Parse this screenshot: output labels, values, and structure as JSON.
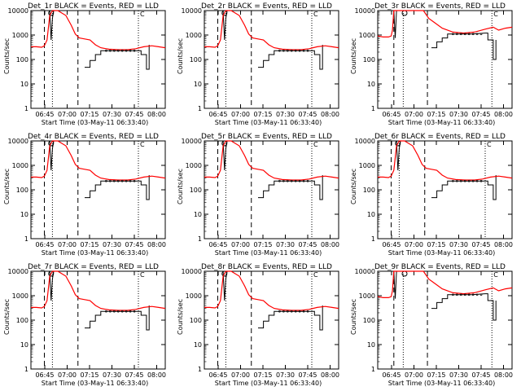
{
  "figure": {
    "layout": "3x3 grid of time-series panels",
    "colors": {
      "events": "#000000",
      "lld": "#ff0000",
      "background": "#ffffff",
      "axes": "#000000"
    }
  },
  "chart_data": [
    {
      "type": "line",
      "title": "Det_1r BLACK = Events, RED = LLD",
      "xlabel": "Start Time (03-May-11 06:33:40)",
      "ylabel": "Counts/sec",
      "yscale": "log",
      "ylim": [
        1,
        10000
      ],
      "xtick_labels": [
        "06:45",
        "07:00",
        "07:15",
        "07:30",
        "07:45",
        "08:00"
      ],
      "ytick_labels": [
        "1",
        "10",
        "100",
        "1000",
        "10000"
      ],
      "marker_label": "C",
      "variant": "A",
      "grid": false,
      "series": [
        {
          "name": "Events",
          "color": "#000000"
        },
        {
          "name": "LLD",
          "color": "#ff0000"
        }
      ]
    },
    {
      "type": "line",
      "title": "Det_2r BLACK = Events, RED = LLD",
      "xlabel": "Start Time (03-May-11 06:33:40)",
      "ylabel": "Counts/sec",
      "yscale": "log",
      "ylim": [
        1,
        10000
      ],
      "xtick_labels": [
        "06:45",
        "07:00",
        "07:15",
        "07:30",
        "07:45",
        "08:00"
      ],
      "ytick_labels": [
        "1",
        "10",
        "100",
        "1000",
        "10000"
      ],
      "marker_label": "C",
      "variant": "A",
      "grid": false,
      "series": [
        {
          "name": "Events",
          "color": "#000000"
        },
        {
          "name": "LLD",
          "color": "#ff0000"
        }
      ]
    },
    {
      "type": "line",
      "title": "Det_3r BLACK = Events, RED = LLD",
      "xlabel": "Start Time (03-May-11 06:33:40)",
      "ylabel": "Counts/sec",
      "yscale": "log",
      "ylim": [
        1,
        10000
      ],
      "xtick_labels": [
        "06:45",
        "07:00",
        "07:15",
        "07:30",
        "07:45",
        "08:00"
      ],
      "ytick_labels": [
        "1",
        "10",
        "100",
        "1000",
        "10000"
      ],
      "marker_label": "C",
      "variant": "B",
      "grid": false,
      "series": [
        {
          "name": "Events",
          "color": "#000000"
        },
        {
          "name": "LLD",
          "color": "#ff0000"
        }
      ]
    },
    {
      "type": "line",
      "title": "Det_4r BLACK = Events, RED = LLD",
      "xlabel": "Start Time (03-May-11 06:33:40)",
      "ylabel": "Counts/sec",
      "yscale": "log",
      "ylim": [
        1,
        10000
      ],
      "xtick_labels": [
        "06:45",
        "07:00",
        "07:15",
        "07:30",
        "07:45",
        "08:00"
      ],
      "ytick_labels": [
        "1",
        "10",
        "100",
        "1000",
        "10000"
      ],
      "marker_label": "C",
      "variant": "A",
      "grid": false,
      "series": [
        {
          "name": "Events",
          "color": "#000000"
        },
        {
          "name": "LLD",
          "color": "#ff0000"
        }
      ]
    },
    {
      "type": "line",
      "title": "Det_5r BLACK = Events, RED = LLD",
      "xlabel": "Start Time (03-May-11 06:33:40)",
      "ylabel": "Counts/sec",
      "yscale": "log",
      "ylim": [
        1,
        10000
      ],
      "xtick_labels": [
        "06:45",
        "07:00",
        "07:15",
        "07:30",
        "07:45",
        "08:00"
      ],
      "ytick_labels": [
        "1",
        "10",
        "100",
        "1000",
        "10000"
      ],
      "marker_label": "C",
      "variant": "A",
      "grid": false,
      "series": [
        {
          "name": "Events",
          "color": "#000000"
        },
        {
          "name": "LLD",
          "color": "#ff0000"
        }
      ]
    },
    {
      "type": "line",
      "title": "Det_6r BLACK = Events, RED = LLD",
      "xlabel": "Start Time (03-May-11 06:33:40)",
      "ylabel": "Counts/sec",
      "yscale": "log",
      "ylim": [
        1,
        10000
      ],
      "xtick_labels": [
        "06:45",
        "07:00",
        "07:15",
        "07:30",
        "07:45",
        "08:00"
      ],
      "ytick_labels": [
        "1",
        "10",
        "100",
        "1000",
        "10000"
      ],
      "marker_label": "C",
      "variant": "A",
      "grid": false,
      "series": [
        {
          "name": "Events",
          "color": "#000000"
        },
        {
          "name": "LLD",
          "color": "#ff0000"
        }
      ]
    },
    {
      "type": "line",
      "title": "Det_7r BLACK = Events, RED = LLD",
      "xlabel": "Start Time (03-May-11 06:33:40)",
      "ylabel": "Counts/sec",
      "yscale": "log",
      "ylim": [
        1,
        10000
      ],
      "xtick_labels": [
        "06:45",
        "07:00",
        "07:15",
        "07:30",
        "07:45",
        "08:00"
      ],
      "ytick_labels": [
        "1",
        "10",
        "100",
        "1000",
        "10000"
      ],
      "marker_label": "C",
      "variant": "A",
      "grid": false,
      "series": [
        {
          "name": "Events",
          "color": "#000000"
        },
        {
          "name": "LLD",
          "color": "#ff0000"
        }
      ]
    },
    {
      "type": "line",
      "title": "Det_8r BLACK = Events, RED = LLD",
      "xlabel": "Start Time (03-May-11 06:33:40)",
      "ylabel": "Counts/sec",
      "yscale": "log",
      "ylim": [
        1,
        10000
      ],
      "xtick_labels": [
        "06:45",
        "07:00",
        "07:15",
        "07:30",
        "07:45",
        "08:00"
      ],
      "ytick_labels": [
        "1",
        "10",
        "100",
        "1000",
        "10000"
      ],
      "marker_label": "C",
      "variant": "A",
      "grid": false,
      "series": [
        {
          "name": "Events",
          "color": "#000000"
        },
        {
          "name": "LLD",
          "color": "#ff0000"
        }
      ]
    },
    {
      "type": "line",
      "title": "Det_9r BLACK = Events, RED = LLD",
      "xlabel": "Start Time (03-May-11 06:33:40)",
      "ylabel": "Counts/sec",
      "yscale": "log",
      "ylim": [
        1,
        10000
      ],
      "xtick_labels": [
        "06:45",
        "07:00",
        "07:15",
        "07:30",
        "07:45",
        "08:00"
      ],
      "ytick_labels": [
        "1",
        "10",
        "100",
        "1000",
        "10000"
      ],
      "marker_label": "C",
      "variant": "B",
      "grid": false,
      "series": [
        {
          "name": "Events",
          "color": "#000000"
        },
        {
          "name": "LLD",
          "color": "#ff0000"
        }
      ]
    }
  ]
}
